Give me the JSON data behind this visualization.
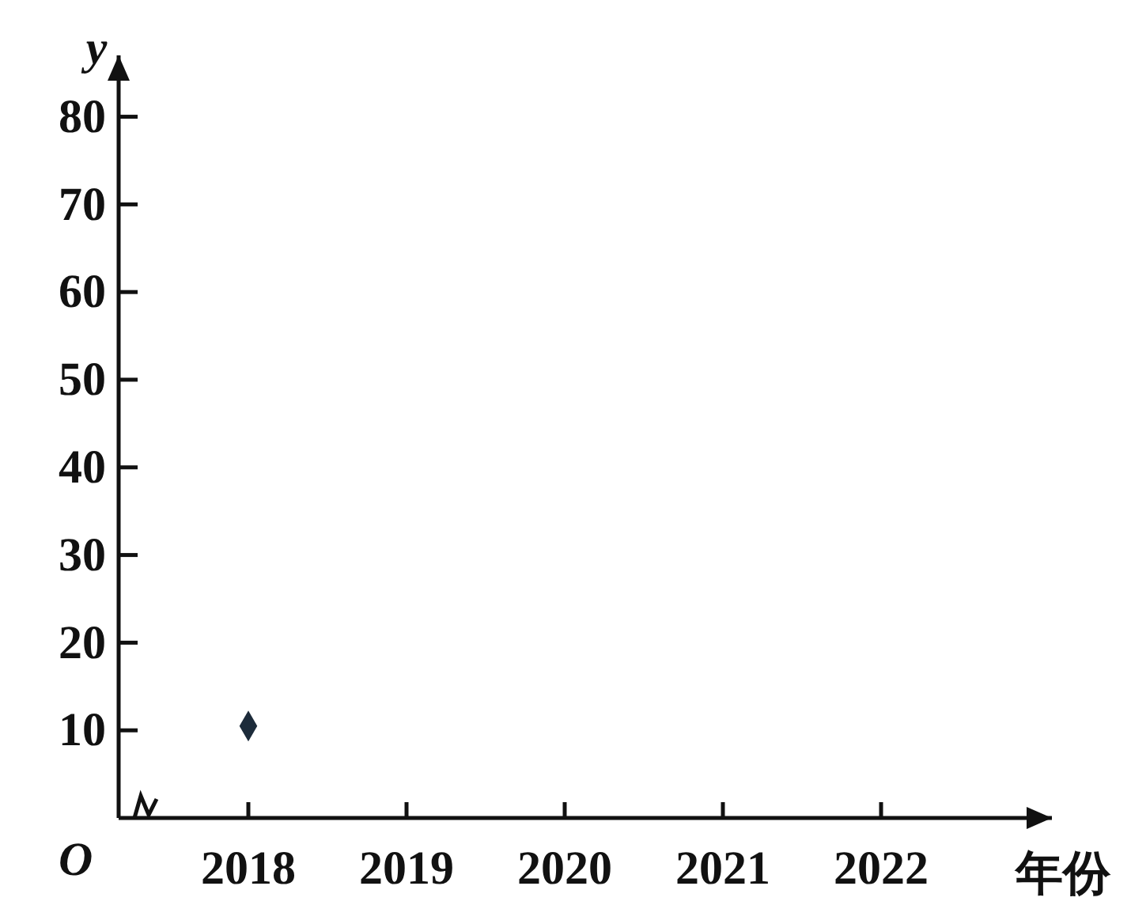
{
  "chart_data": {
    "type": "scatter",
    "xlabel": "年份",
    "ylabel": "y",
    "annotations": [
      "O"
    ],
    "categories": [
      "2018",
      "2019",
      "2020",
      "2021",
      "2022"
    ],
    "values": [
      10.5,
      null,
      null,
      null,
      null
    ],
    "color": "#1c2b3a",
    "marker": "diamond",
    "ylim": [
      0,
      87
    ],
    "yticks": [
      10,
      20,
      30,
      40,
      50,
      60,
      70,
      80
    ]
  }
}
